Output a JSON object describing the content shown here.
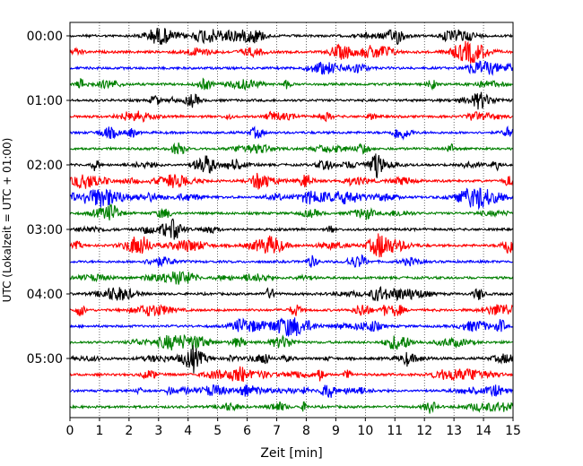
{
  "chart_data": {
    "type": "line",
    "xlabel": "Zeit  [min]",
    "ylabel": "UTC (Lokalzeit = UTC + 01:00)",
    "xlim": [
      0,
      15
    ],
    "x_ticks": [
      "0",
      "1",
      "2",
      "3",
      "4",
      "5",
      "6",
      "7",
      "8",
      "9",
      "10",
      "11",
      "12",
      "13",
      "14",
      "15"
    ],
    "y_tick_labels": [
      "00:00",
      "01:00",
      "02:00",
      "03:00",
      "04:00",
      "05:00"
    ],
    "rows_per_hour": 4,
    "minutes_per_row": 15,
    "row_count": 24,
    "color_cycle": [
      "#000000",
      "#ff0000",
      "#0000ff",
      "#008000"
    ],
    "vertical_grid": "dotted",
    "note_rows": "24 seismic trace rows, each spanning 15 minutes, from 00:00 to 06:00 UTC; colors cycle black, red, blue, green"
  }
}
